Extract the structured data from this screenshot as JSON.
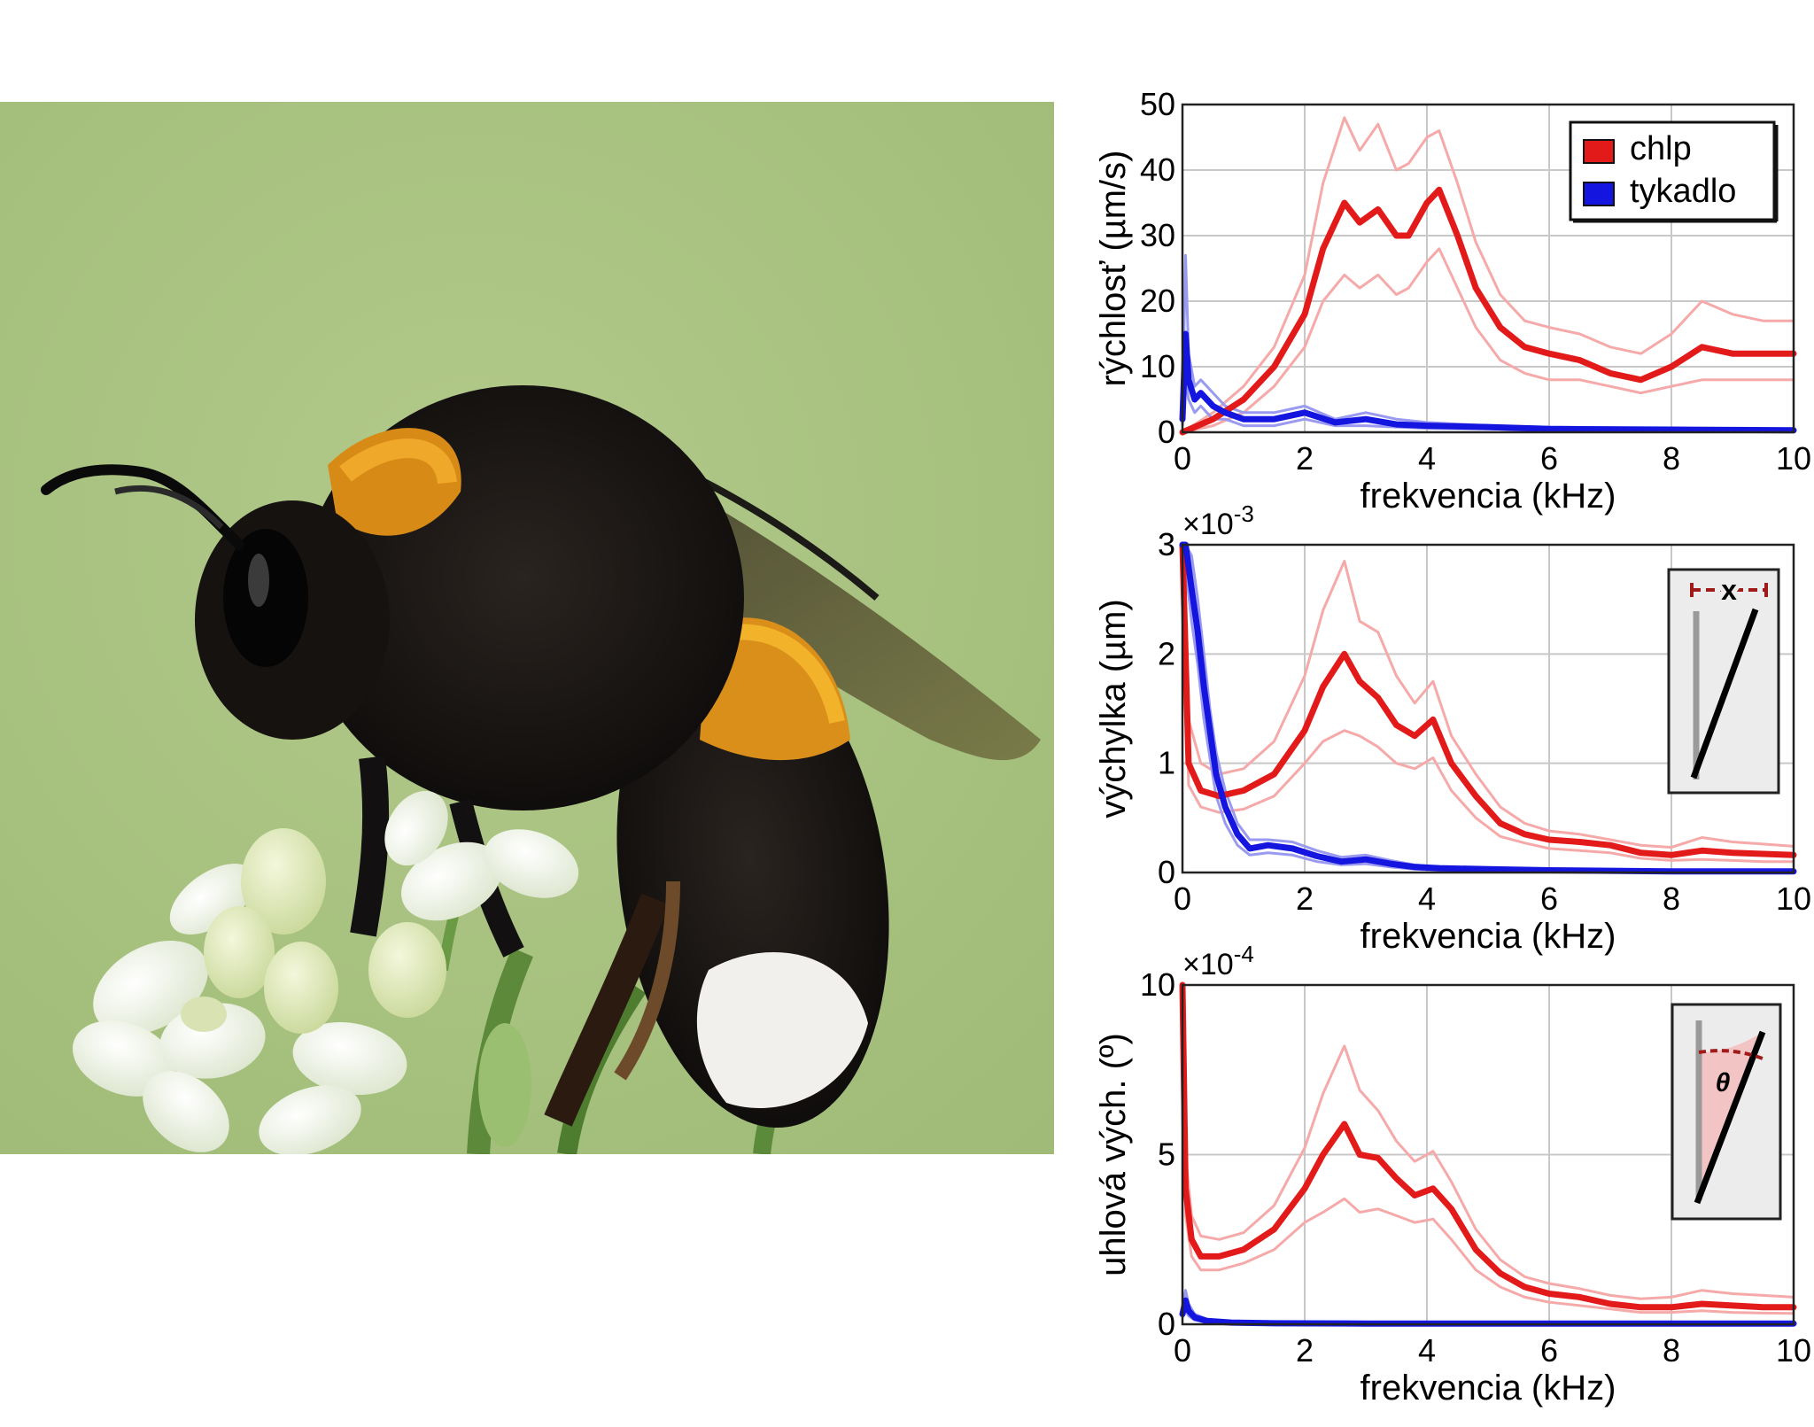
{
  "photo": {
    "subject": "bumblebee-on-white-flowers",
    "bg": "#a9c282"
  },
  "colors": {
    "hair": "#e31a1a",
    "hair_band": "#f6a9a9",
    "antenna": "#1515e0",
    "antenna_band": "#9a9af0",
    "grid": "#c8c8c8",
    "inset_bg": "#ececec"
  },
  "chart_data": [
    {
      "type": "line",
      "xlabel": "frekvencia (kHz)",
      "ylabel": "rýchlosť (µm/s)",
      "xlim": [
        0,
        10
      ],
      "ylim": [
        0,
        50
      ],
      "xticks": [
        "0",
        "2",
        "4",
        "6",
        "8",
        "10"
      ],
      "yticks": [
        "0",
        "10",
        "20",
        "30",
        "40",
        "50"
      ],
      "scale_label": "",
      "legend": {
        "position": "top-right",
        "entries": [
          "chlp",
          "tykadlo"
        ]
      },
      "inset": "",
      "series": [
        {
          "name": "chlp",
          "color": "#e31a1a",
          "x": [
            0,
            0.5,
            1,
            1.5,
            2,
            2.3,
            2.65,
            2.9,
            3.2,
            3.5,
            3.7,
            4.0,
            4.2,
            4.5,
            4.8,
            5.2,
            5.6,
            6.0,
            6.5,
            7.0,
            7.5,
            8.0,
            8.5,
            9.0,
            9.5,
            10
          ],
          "y": [
            0,
            2,
            5,
            10,
            18,
            28,
            35,
            32,
            34,
            30,
            30,
            35,
            37,
            30,
            22,
            16,
            13,
            12,
            11,
            9,
            8,
            10,
            13,
            12,
            12,
            12
          ],
          "upper": [
            0,
            3,
            7,
            13,
            24,
            38,
            48,
            43,
            47,
            40,
            41,
            45,
            46,
            38,
            29,
            21,
            17,
            16,
            15,
            13,
            12,
            15,
            20,
            18,
            17,
            17
          ],
          "lower": [
            0,
            1,
            3,
            7,
            13,
            20,
            24,
            22,
            24,
            21,
            22,
            26,
            28,
            22,
            16,
            11,
            9,
            8,
            8,
            7,
            6,
            7,
            8,
            8,
            8,
            8
          ]
        },
        {
          "name": "tykadlo",
          "color": "#1515e0",
          "x": [
            0,
            0.05,
            0.1,
            0.2,
            0.3,
            0.4,
            0.5,
            0.7,
            1.0,
            1.5,
            2.0,
            2.5,
            3.0,
            3.5,
            4.0,
            5.0,
            6.0,
            8.0,
            10
          ],
          "y": [
            2,
            15,
            8,
            5,
            6,
            5,
            4,
            3,
            2,
            2,
            3,
            1.5,
            2,
            1.2,
            1,
            0.8,
            0.5,
            0.4,
            0.3
          ],
          "upper": [
            3,
            27,
            12,
            7,
            8,
            7,
            6,
            4,
            3,
            3,
            4,
            2,
            3,
            2,
            1.5,
            1,
            0.8,
            0.6,
            0.5
          ],
          "lower": [
            1,
            8,
            5,
            3,
            4,
            3,
            2,
            2,
            1,
            1,
            2,
            1,
            1,
            0.8,
            0.6,
            0.5,
            0.3,
            0.2,
            0.2
          ]
        }
      ]
    },
    {
      "type": "line",
      "xlabel": "frekvencia (kHz)",
      "ylabel": "výchylka (µm)",
      "xlim": [
        0,
        10
      ],
      "ylim": [
        0,
        3
      ],
      "xticks": [
        "0",
        "2",
        "4",
        "6",
        "8",
        "10"
      ],
      "yticks": [
        "0",
        "1",
        "2",
        "3"
      ],
      "scale_label": "×10",
      "scale_exp": "-3",
      "inset": "x",
      "series": [
        {
          "name": "chlp",
          "color": "#e31a1a",
          "x": [
            0,
            0.1,
            0.3,
            0.6,
            1.0,
            1.5,
            2.0,
            2.3,
            2.65,
            2.9,
            3.2,
            3.5,
            3.8,
            4.1,
            4.4,
            4.8,
            5.2,
            5.6,
            6.0,
            6.5,
            7.0,
            7.5,
            8.0,
            8.5,
            9.0,
            9.5,
            10
          ],
          "y": [
            3.0,
            1.0,
            0.75,
            0.7,
            0.75,
            0.9,
            1.3,
            1.7,
            2.0,
            1.75,
            1.6,
            1.35,
            1.25,
            1.4,
            1.0,
            0.7,
            0.45,
            0.35,
            0.3,
            0.28,
            0.25,
            0.18,
            0.16,
            0.2,
            0.18,
            0.17,
            0.16
          ],
          "upper": [
            3.0,
            1.4,
            1.0,
            0.9,
            0.95,
            1.2,
            1.8,
            2.4,
            2.85,
            2.3,
            2.2,
            1.8,
            1.55,
            1.75,
            1.25,
            0.9,
            0.6,
            0.45,
            0.38,
            0.35,
            0.3,
            0.25,
            0.23,
            0.32,
            0.28,
            0.26,
            0.24
          ],
          "lower": [
            3.0,
            0.8,
            0.6,
            0.55,
            0.58,
            0.7,
            1.0,
            1.2,
            1.3,
            1.25,
            1.15,
            1.0,
            0.95,
            1.05,
            0.75,
            0.5,
            0.33,
            0.27,
            0.22,
            0.2,
            0.18,
            0.13,
            0.11,
            0.12,
            0.11,
            0.1,
            0.1
          ]
        },
        {
          "name": "tykadlo",
          "color": "#1515e0",
          "x": [
            0,
            0.05,
            0.15,
            0.25,
            0.35,
            0.45,
            0.55,
            0.7,
            0.9,
            1.1,
            1.4,
            1.8,
            2.2,
            2.6,
            3.0,
            3.4,
            3.8,
            4.2,
            5.0,
            6.0,
            8.0,
            10
          ],
          "y": [
            3.0,
            3.0,
            2.6,
            2.2,
            1.7,
            1.3,
            0.9,
            0.6,
            0.35,
            0.22,
            0.25,
            0.22,
            0.15,
            0.1,
            0.12,
            0.08,
            0.05,
            0.04,
            0.03,
            0.02,
            0.01,
            0.01
          ],
          "upper": [
            3.0,
            3.0,
            2.9,
            2.5,
            2.0,
            1.5,
            1.1,
            0.75,
            0.45,
            0.3,
            0.3,
            0.28,
            0.2,
            0.14,
            0.16,
            0.11,
            0.07,
            0.05,
            0.04,
            0.03,
            0.02,
            0.02
          ],
          "lower": [
            3.0,
            2.8,
            2.3,
            1.9,
            1.4,
            1.05,
            0.7,
            0.45,
            0.25,
            0.16,
            0.18,
            0.16,
            0.1,
            0.07,
            0.08,
            0.05,
            0.03,
            0.02,
            0.02,
            0.01,
            0.005,
            0.005
          ]
        }
      ]
    },
    {
      "type": "line",
      "xlabel": "frekvencia (kHz)",
      "ylabel": "uhlová vých. (º)",
      "xlim": [
        0,
        10
      ],
      "ylim": [
        0,
        10
      ],
      "xticks": [
        "0",
        "2",
        "4",
        "6",
        "8",
        "10"
      ],
      "yticks": [
        "0",
        "5",
        "10"
      ],
      "scale_label": "×10",
      "scale_exp": "-4",
      "inset": "θ",
      "series": [
        {
          "name": "chlp",
          "color": "#e31a1a",
          "x": [
            0,
            0.05,
            0.15,
            0.3,
            0.6,
            1.0,
            1.5,
            2.0,
            2.3,
            2.65,
            2.9,
            3.2,
            3.5,
            3.8,
            4.1,
            4.4,
            4.8,
            5.2,
            5.6,
            6.0,
            6.5,
            7.0,
            7.5,
            8.0,
            8.5,
            9.0,
            9.5,
            10
          ],
          "y": [
            10,
            4,
            2.5,
            2.0,
            2.0,
            2.2,
            2.8,
            4.0,
            5.0,
            5.9,
            5.0,
            4.9,
            4.3,
            3.8,
            4.0,
            3.4,
            2.2,
            1.5,
            1.1,
            0.9,
            0.8,
            0.6,
            0.5,
            0.5,
            0.6,
            0.55,
            0.5,
            0.5
          ],
          "upper": [
            10,
            5,
            3.2,
            2.6,
            2.5,
            2.7,
            3.5,
            5.2,
            6.8,
            8.2,
            6.9,
            6.3,
            5.4,
            4.8,
            5.1,
            4.2,
            2.8,
            1.9,
            1.4,
            1.2,
            1.05,
            0.85,
            0.75,
            0.8,
            1.0,
            0.9,
            0.85,
            0.8
          ],
          "lower": [
            10,
            3.2,
            2.0,
            1.6,
            1.6,
            1.8,
            2.2,
            3.0,
            3.3,
            3.7,
            3.3,
            3.4,
            3.2,
            3.0,
            3.1,
            2.5,
            1.6,
            1.1,
            0.8,
            0.65,
            0.55,
            0.45,
            0.35,
            0.35,
            0.4,
            0.35,
            0.33,
            0.32
          ]
        },
        {
          "name": "tykadlo",
          "color": "#1515e0",
          "x": [
            0,
            0.05,
            0.1,
            0.2,
            0.4,
            0.8,
            1.5,
            3,
            6,
            10
          ],
          "y": [
            0.3,
            0.7,
            0.4,
            0.2,
            0.1,
            0.05,
            0.03,
            0.02,
            0.02,
            0.02
          ],
          "upper": [
            0.5,
            1.0,
            0.6,
            0.3,
            0.15,
            0.08,
            0.05,
            0.03,
            0.03,
            0.03
          ],
          "lower": [
            0.2,
            0.4,
            0.25,
            0.12,
            0.06,
            0.03,
            0.02,
            0.01,
            0.01,
            0.01
          ]
        }
      ]
    }
  ]
}
